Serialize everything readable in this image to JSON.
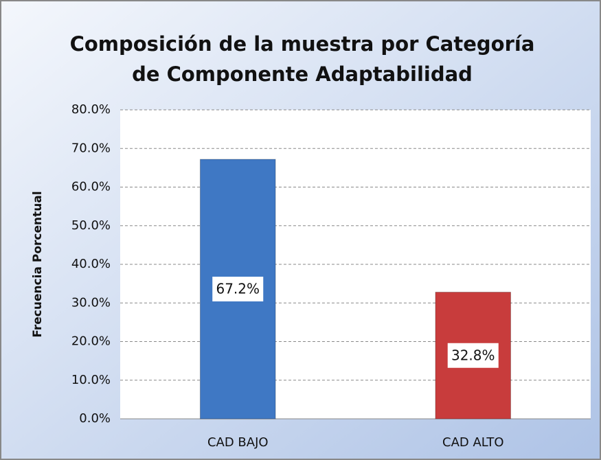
{
  "chart_data": {
    "type": "bar",
    "title": "Composición de la muestra por Categoría de Componente Adaptabilidad",
    "y_label": "Frecuencia Porcentual",
    "categories": [
      "CAD BAJO",
      "CAD ALTO"
    ],
    "values": [
      67.2,
      32.8
    ],
    "value_labels": [
      "67.2%",
      "32.8%"
    ],
    "colors": [
      "#3f78c4",
      "#c83c3c"
    ],
    "ylim": [
      0,
      80
    ],
    "yticks": [
      {
        "value": 0,
        "label": "0.0%"
      },
      {
        "value": 10,
        "label": "10.0%"
      },
      {
        "value": 20,
        "label": "20.0%"
      },
      {
        "value": 30,
        "label": "30.0%"
      },
      {
        "value": 40,
        "label": "40.0%"
      },
      {
        "value": 50,
        "label": "50.0%"
      },
      {
        "value": 60,
        "label": "60.0%"
      },
      {
        "value": 70,
        "label": "70.0%"
      },
      {
        "value": 80,
        "label": "80.0%"
      }
    ],
    "grid": true
  }
}
